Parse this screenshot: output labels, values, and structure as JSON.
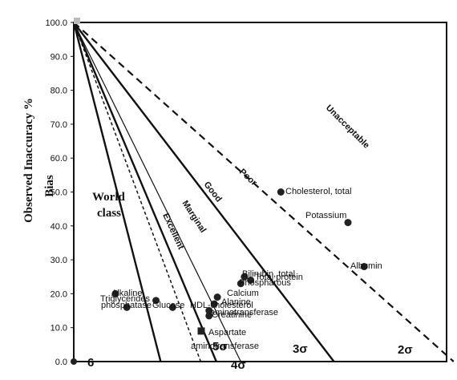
{
  "chart_data": {
    "type": "scatter",
    "title": "",
    "ylabel_main": "Observed Inaccuracy %",
    "ylabel_sub": "Bias",
    "ylim": [
      0,
      100
    ],
    "yticks": [
      "0.0",
      "10.0",
      "20.0",
      "30.0",
      "40.0",
      "50.0",
      "60.0",
      "70.0",
      "80.0",
      "90.0",
      "100.0"
    ],
    "lines": [
      {
        "name": "World class",
        "x_intercept": 1.67,
        "style": "solid-thick"
      },
      {
        "name": "Excellent",
        "x_intercept": 2.44,
        "style": "dotted"
      },
      {
        "name": "Marginal",
        "x_intercept": 3.21,
        "style": "solid-thin"
      },
      {
        "name": "Good",
        "x_intercept": 2.74,
        "style": "solid-thick"
      },
      {
        "name": "Poor",
        "x_intercept": 5.0,
        "style": "solid-thick"
      },
      {
        "name": "Unacceptable",
        "x_intercept": 7.3,
        "style": "dashed"
      }
    ],
    "zone_labels": {
      "world_class_1": "World",
      "world_class_2": "class",
      "excellent": "Excellent",
      "marginal": "Marginal",
      "good": "Good",
      "poor": "Poor",
      "unacceptable": "Unacceptable"
    },
    "sigma_labels": {
      "six": "6",
      "five": "5σ",
      "four": "4σ",
      "three": "3σ",
      "two": "2σ"
    },
    "points": [
      {
        "label": "Cholesterol, total",
        "x": 3.98,
        "y": 50
      },
      {
        "label": "Potassium",
        "x": 5.27,
        "y": 41
      },
      {
        "label": "Albumin",
        "x": 5.58,
        "y": 28
      },
      {
        "label": "Bilirubin, total",
        "x": 3.28,
        "y": 25
      },
      {
        "label": "Total protein",
        "x": 3.4,
        "y": 24
      },
      {
        "label": "Phospharous",
        "x": 3.21,
        "y": 23
      },
      {
        "label": "Calcium",
        "x": 2.76,
        "y": 19
      },
      {
        "label": "Alanine",
        "x": 2.7,
        "y": 17
      },
      {
        "label": "aminotransferase",
        "x": 2.6,
        "y": 15
      },
      {
        "label": "Creatinine",
        "x": 2.6,
        "y": 13.5
      },
      {
        "label": "Alkaline",
        "x": 0.8,
        "y": 20
      },
      {
        "label": "Triglycerides",
        "x": 1.58,
        "y": 18
      },
      {
        "label": "phosphatase",
        "x": 1.02,
        "y": 16
      },
      {
        "label": "HDL-cholesterol",
        "x": 1.9,
        "y": 16
      },
      {
        "label": "Aspartate aminotransferase",
        "x": 2.45,
        "y": 9,
        "marker": "square"
      }
    ],
    "point_text": {
      "alkaline": "Alkaline",
      "triglycerides": "Triglycerides",
      "phosphatase": "phosphatase",
      "glucose": "Glucose",
      "hdl": "HDL-cholesterol",
      "aspartate_1": "Aspartate",
      "aspartate_2": "aminotransferase",
      "calcium": "Calcium",
      "alanine": "Alanine",
      "alt": "aminotransferase",
      "creatinine": "Creatinine",
      "phospharous": "Phospharous",
      "bilirubin": "Bilirubin, total",
      "total_protein": "Total protein",
      "cholesterol": "Cholesterol, total",
      "potassium": "Potassium",
      "albumin": "Albumin"
    }
  }
}
